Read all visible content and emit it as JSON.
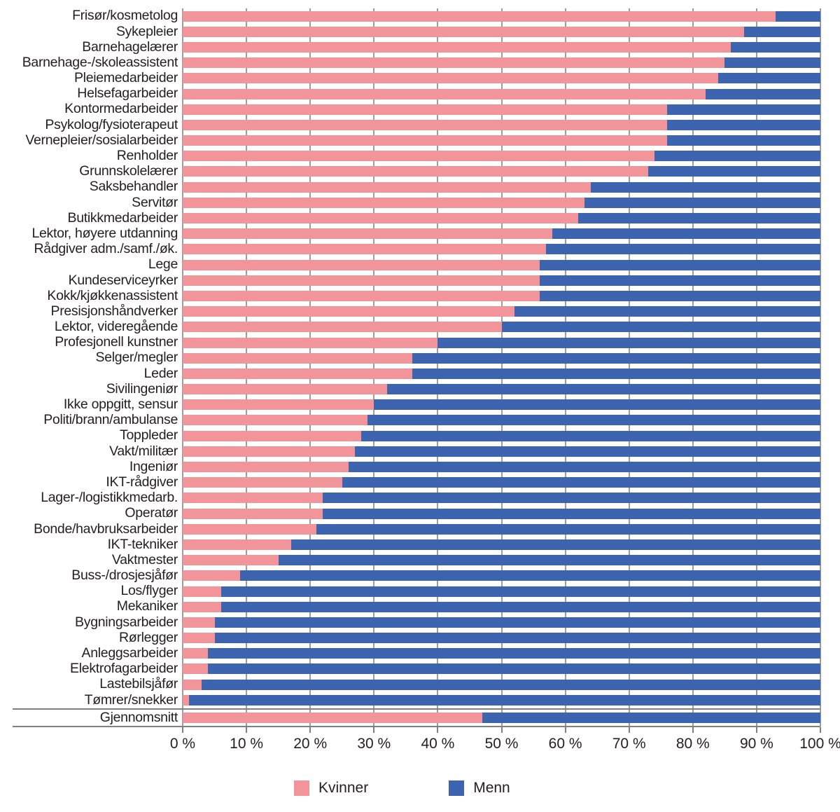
{
  "legend": {
    "kvinner_label": "Kvinner",
    "menn_label": "Menn"
  },
  "chart_data": {
    "type": "bar",
    "orientation": "horizontal-stacked",
    "unit": "%",
    "xlim": [
      0,
      100
    ],
    "x_tick_labels": [
      "0 %",
      "10 %",
      "20 %",
      "30 %",
      "40 %",
      "50 %",
      "60 %",
      "70 %",
      "80 %",
      "90 %",
      "100 %"
    ],
    "grid": true,
    "legend_position": "bottom",
    "series_names": [
      "Kvinner",
      "Menn"
    ],
    "colors": {
      "kvinner": "#f2959b",
      "menn": "#3d64ae"
    },
    "categories": [
      {
        "label": "Frisør/kosmetolog",
        "kvinner": 93,
        "menn": 7
      },
      {
        "label": "Sykepleier",
        "kvinner": 88,
        "menn": 12
      },
      {
        "label": "Barnehagelærer",
        "kvinner": 86,
        "menn": 14
      },
      {
        "label": "Barnehage-/skoleassistent",
        "kvinner": 85,
        "menn": 15
      },
      {
        "label": "Pleiemedarbeider",
        "kvinner": 84,
        "menn": 16
      },
      {
        "label": "Helsefagarbeider",
        "kvinner": 82,
        "menn": 18
      },
      {
        "label": "Kontormedarbeider",
        "kvinner": 76,
        "menn": 24
      },
      {
        "label": "Psykolog/fysioterapeut",
        "kvinner": 76,
        "menn": 24
      },
      {
        "label": "Vernepleier/sosialarbeider",
        "kvinner": 76,
        "menn": 24
      },
      {
        "label": "Renholder",
        "kvinner": 74,
        "menn": 26
      },
      {
        "label": "Grunnskolelærer",
        "kvinner": 73,
        "menn": 27
      },
      {
        "label": "Saksbehandler",
        "kvinner": 64,
        "menn": 36
      },
      {
        "label": "Servitør",
        "kvinner": 63,
        "menn": 37
      },
      {
        "label": "Butikkmedarbeider",
        "kvinner": 62,
        "menn": 38
      },
      {
        "label": "Lektor, høyere utdanning",
        "kvinner": 58,
        "menn": 42
      },
      {
        "label": "Rådgiver adm./samf./øk.",
        "kvinner": 57,
        "menn": 43
      },
      {
        "label": "Lege",
        "kvinner": 56,
        "menn": 44
      },
      {
        "label": "Kundeserviceyrker",
        "kvinner": 56,
        "menn": 44
      },
      {
        "label": "Kokk/kjøkkenassistent",
        "kvinner": 56,
        "menn": 44
      },
      {
        "label": "Presisjonshåndverker",
        "kvinner": 52,
        "menn": 48
      },
      {
        "label": "Lektor, videregående",
        "kvinner": 50,
        "menn": 50
      },
      {
        "label": "Profesjonell kunstner",
        "kvinner": 40,
        "menn": 60
      },
      {
        "label": "Selger/megler",
        "kvinner": 36,
        "menn": 64
      },
      {
        "label": "Leder",
        "kvinner": 36,
        "menn": 64
      },
      {
        "label": "Sivilingeniør",
        "kvinner": 32,
        "menn": 68
      },
      {
        "label": "Ikke oppgitt, sensur",
        "kvinner": 30,
        "menn": 70
      },
      {
        "label": "Politi/brann/ambulanse",
        "kvinner": 29,
        "menn": 71
      },
      {
        "label": "Toppleder",
        "kvinner": 28,
        "menn": 72
      },
      {
        "label": "Vakt/militær",
        "kvinner": 27,
        "menn": 73
      },
      {
        "label": "Ingeniør",
        "kvinner": 26,
        "menn": 74
      },
      {
        "label": "IKT-rådgiver",
        "kvinner": 25,
        "menn": 75
      },
      {
        "label": "Lager-/logistikkmedarb.",
        "kvinner": 22,
        "menn": 78
      },
      {
        "label": "Operatør",
        "kvinner": 22,
        "menn": 78
      },
      {
        "label": "Bonde/havbruksarbeider",
        "kvinner": 21,
        "menn": 79
      },
      {
        "label": "IKT-tekniker",
        "kvinner": 17,
        "menn": 83
      },
      {
        "label": "Vaktmester",
        "kvinner": 15,
        "menn": 85
      },
      {
        "label": "Buss-/drosjesjåfør",
        "kvinner": 9,
        "menn": 91
      },
      {
        "label": "Los/flyger",
        "kvinner": 6,
        "menn": 94
      },
      {
        "label": "Mekaniker",
        "kvinner": 6,
        "menn": 94
      },
      {
        "label": "Bygningsarbeider",
        "kvinner": 5,
        "menn": 95
      },
      {
        "label": "Rørlegger",
        "kvinner": 5,
        "menn": 95
      },
      {
        "label": "Anleggsarbeider",
        "kvinner": 4,
        "menn": 96
      },
      {
        "label": "Elektrofagarbeider",
        "kvinner": 4,
        "menn": 96
      },
      {
        "label": "Lastebilsjåfør",
        "kvinner": 3,
        "menn": 97
      },
      {
        "label": "Tømrer/snekker",
        "kvinner": 1,
        "menn": 99
      }
    ],
    "average": {
      "label": "Gjennomsnitt",
      "kvinner": 47,
      "menn": 53
    }
  }
}
